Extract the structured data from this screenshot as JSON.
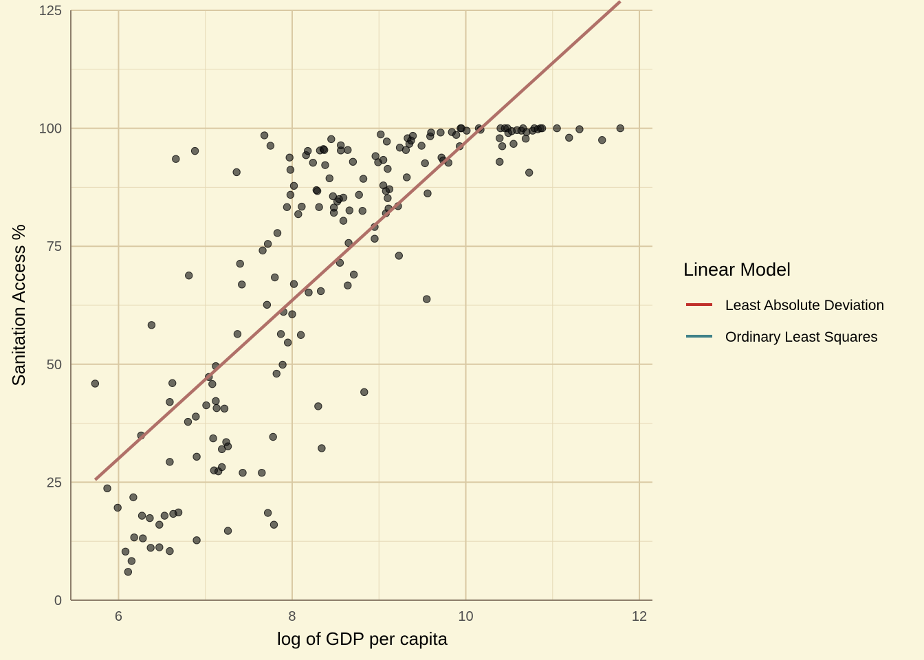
{
  "chart_data": {
    "type": "scatter",
    "xlabel": "log of GDP per capita",
    "ylabel": "Sanitation Access %",
    "xlim": [
      5.45,
      12.15
    ],
    "ylim": [
      0,
      125
    ],
    "x_ticks": [
      6,
      8,
      10,
      12
    ],
    "y_ticks": [
      0,
      25,
      50,
      75,
      100,
      125
    ],
    "grid": true,
    "legend": {
      "title": "Linear Model",
      "position": "right",
      "items": [
        {
          "label": "Least Absolute Deviation",
          "color": "#c0302a"
        },
        {
          "label": "Ordinary Least Squares",
          "color": "#3f8188"
        }
      ]
    },
    "fit_line": {
      "x": [
        5.73,
        11.78
      ],
      "y": [
        25.5,
        126.9
      ],
      "color": "#b07068"
    },
    "points": [
      [
        5.73,
        45.9
      ],
      [
        5.87,
        23.7
      ],
      [
        5.99,
        19.6
      ],
      [
        6.08,
        10.3
      ],
      [
        6.11,
        6.0
      ],
      [
        6.15,
        8.3
      ],
      [
        6.17,
        21.8
      ],
      [
        6.18,
        13.3
      ],
      [
        6.26,
        34.9
      ],
      [
        6.27,
        17.9
      ],
      [
        6.28,
        13.1
      ],
      [
        6.36,
        17.4
      ],
      [
        6.37,
        11.1
      ],
      [
        6.38,
        58.3
      ],
      [
        6.47,
        16.0
      ],
      [
        6.47,
        11.2
      ],
      [
        6.53,
        17.9
      ],
      [
        6.59,
        10.4
      ],
      [
        6.59,
        29.3
      ],
      [
        6.59,
        42.0
      ],
      [
        6.62,
        46.0
      ],
      [
        6.63,
        18.3
      ],
      [
        6.66,
        93.5
      ],
      [
        6.69,
        18.6
      ],
      [
        6.8,
        37.8
      ],
      [
        6.81,
        68.8
      ],
      [
        6.88,
        95.2
      ],
      [
        6.89,
        38.9
      ],
      [
        6.9,
        12.7
      ],
      [
        6.9,
        30.4
      ],
      [
        7.01,
        41.3
      ],
      [
        7.04,
        47.3
      ],
      [
        7.08,
        45.8
      ],
      [
        7.09,
        34.3
      ],
      [
        7.1,
        27.5
      ],
      [
        7.12,
        49.6
      ],
      [
        7.12,
        42.2
      ],
      [
        7.13,
        40.7
      ],
      [
        7.15,
        27.3
      ],
      [
        7.19,
        28.2
      ],
      [
        7.19,
        32.0
      ],
      [
        7.22,
        40.6
      ],
      [
        7.24,
        33.5
      ],
      [
        7.26,
        32.6
      ],
      [
        7.26,
        14.7
      ],
      [
        7.36,
        90.7
      ],
      [
        7.37,
        56.4
      ],
      [
        7.4,
        71.3
      ],
      [
        7.42,
        66.9
      ],
      [
        7.43,
        27.0
      ],
      [
        7.65,
        27.0
      ],
      [
        7.66,
        74.1
      ],
      [
        7.68,
        98.5
      ],
      [
        7.71,
        62.6
      ],
      [
        7.72,
        18.5
      ],
      [
        7.72,
        75.5
      ],
      [
        7.75,
        96.3
      ],
      [
        7.78,
        34.6
      ],
      [
        7.79,
        16.0
      ],
      [
        7.8,
        68.4
      ],
      [
        7.82,
        48.0
      ],
      [
        7.83,
        77.8
      ],
      [
        7.87,
        56.4
      ],
      [
        7.89,
        49.9
      ],
      [
        7.9,
        61.1
      ],
      [
        7.94,
        83.3
      ],
      [
        7.95,
        54.6
      ],
      [
        7.97,
        93.8
      ],
      [
        7.98,
        85.9
      ],
      [
        7.98,
        91.2
      ],
      [
        8.0,
        60.6
      ],
      [
        8.02,
        67.0
      ],
      [
        8.02,
        87.8
      ],
      [
        8.07,
        81.8
      ],
      [
        8.1,
        56.2
      ],
      [
        8.11,
        83.4
      ],
      [
        8.16,
        94.3
      ],
      [
        8.18,
        95.2
      ],
      [
        8.19,
        65.2
      ],
      [
        8.24,
        92.7
      ],
      [
        8.28,
        86.9
      ],
      [
        8.29,
        86.7
      ],
      [
        8.3,
        41.1
      ],
      [
        8.31,
        83.3
      ],
      [
        8.32,
        95.3
      ],
      [
        8.33,
        65.5
      ],
      [
        8.34,
        32.2
      ],
      [
        8.36,
        95.6
      ],
      [
        8.37,
        95.4
      ],
      [
        8.38,
        92.2
      ],
      [
        8.43,
        89.4
      ],
      [
        8.45,
        97.7
      ],
      [
        8.47,
        85.6
      ],
      [
        8.48,
        82.1
      ],
      [
        8.48,
        83.2
      ],
      [
        8.52,
        84.5
      ],
      [
        8.54,
        85.0
      ],
      [
        8.55,
        71.5
      ],
      [
        8.56,
        95.3
      ],
      [
        8.56,
        96.4
      ],
      [
        8.59,
        85.3
      ],
      [
        8.59,
        80.4
      ],
      [
        8.64,
        95.4
      ],
      [
        8.64,
        66.7
      ],
      [
        8.65,
        75.7
      ],
      [
        8.66,
        82.6
      ],
      [
        8.7,
        92.9
      ],
      [
        8.71,
        69.0
      ],
      [
        8.77,
        85.9
      ],
      [
        8.81,
        82.5
      ],
      [
        8.82,
        89.3
      ],
      [
        8.83,
        44.1
      ],
      [
        8.95,
        79.1
      ],
      [
        8.95,
        76.6
      ],
      [
        8.96,
        94.1
      ],
      [
        8.99,
        92.8
      ],
      [
        9.02,
        98.7
      ],
      [
        9.05,
        93.3
      ],
      [
        9.05,
        87.9
      ],
      [
        9.08,
        86.7
      ],
      [
        9.08,
        82.0
      ],
      [
        9.09,
        97.2
      ],
      [
        9.1,
        91.4
      ],
      [
        9.1,
        85.2
      ],
      [
        9.11,
        83.0
      ],
      [
        9.12,
        87.1
      ],
      [
        9.22,
        83.5
      ],
      [
        9.23,
        73.0
      ],
      [
        9.24,
        95.9
      ],
      [
        9.31,
        95.4
      ],
      [
        9.32,
        89.6
      ],
      [
        9.33,
        97.9
      ],
      [
        9.35,
        96.7
      ],
      [
        9.37,
        97.4
      ],
      [
        9.39,
        98.4
      ],
      [
        9.49,
        96.3
      ],
      [
        9.53,
        92.6
      ],
      [
        9.55,
        63.8
      ],
      [
        9.56,
        86.2
      ],
      [
        9.59,
        98.3
      ],
      [
        9.6,
        99.1
      ],
      [
        9.71,
        99.1
      ],
      [
        9.72,
        93.8
      ],
      [
        9.74,
        93.2
      ],
      [
        9.8,
        92.7
      ],
      [
        9.84,
        99.2
      ],
      [
        9.89,
        98.6
      ],
      [
        9.93,
        96.2
      ],
      [
        9.94,
        100
      ],
      [
        9.95,
        100
      ],
      [
        10.01,
        99.5
      ],
      [
        10.15,
        100
      ],
      [
        10.17,
        99.7
      ],
      [
        10.39,
        97.9
      ],
      [
        10.39,
        92.9
      ],
      [
        10.4,
        100
      ],
      [
        10.42,
        96.2
      ],
      [
        10.45,
        100
      ],
      [
        10.48,
        100
      ],
      [
        10.49,
        99.0
      ],
      [
        10.53,
        99.4
      ],
      [
        10.55,
        96.7
      ],
      [
        10.59,
        99.6
      ],
      [
        10.64,
        99.5
      ],
      [
        10.66,
        100
      ],
      [
        10.69,
        97.8
      ],
      [
        10.7,
        99.2
      ],
      [
        10.73,
        90.6
      ],
      [
        10.77,
        99.5
      ],
      [
        10.79,
        100
      ],
      [
        10.83,
        99.8
      ],
      [
        10.86,
        100
      ],
      [
        10.88,
        100
      ],
      [
        11.05,
        100
      ],
      [
        11.19,
        98.0
      ],
      [
        11.31,
        99.8
      ],
      [
        11.57,
        97.5
      ],
      [
        11.78,
        100
      ]
    ]
  }
}
